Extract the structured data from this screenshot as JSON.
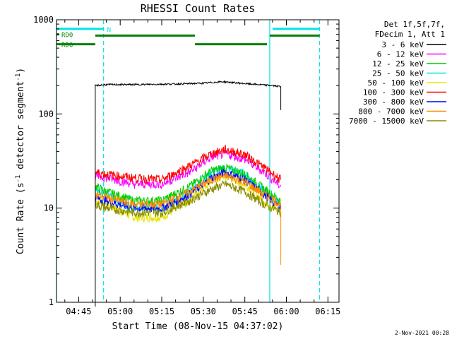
{
  "chart_data": {
    "type": "line",
    "title": "RHESSI Count Rates",
    "xlabel": "Start Time (08-Nov-15 04:37:02)",
    "ylabel_main": "Count Rate (s",
    "ylabel_sup1": "-1",
    "ylabel_mid": " detector segment",
    "ylabel_sup2": "-1",
    "ylabel_end": ")",
    "y_scale": "log",
    "ylim": [
      1,
      1000
    ],
    "xlim_minutes": [
      "04:37",
      "06:19"
    ],
    "y_ticks": [
      {
        "value": 1,
        "label": "1"
      },
      {
        "value": 10,
        "label": "10"
      },
      {
        "value": 100,
        "label": "100"
      },
      {
        "value": 1000,
        "label": "1000"
      }
    ],
    "x_ticks": [
      {
        "time": "04:45",
        "label": "04:45"
      },
      {
        "time": "05:00",
        "label": "05:00"
      },
      {
        "time": "05:15",
        "label": "05:15"
      },
      {
        "time": "05:30",
        "label": "05:30"
      },
      {
        "time": "05:45",
        "label": "05:45"
      },
      {
        "time": "06:00",
        "label": "06:00"
      },
      {
        "time": "06:15",
        "label": "06:15"
      }
    ],
    "legend": {
      "header": [
        "Det 1f,5f,7f,",
        "FDecim 1, Att 1"
      ],
      "placement": "right",
      "entries": [
        {
          "label": "3 - 6 keV",
          "color": "#000000"
        },
        {
          "label": "6 - 12 keV",
          "color": "#ff00ff"
        },
        {
          "label": "12 - 25 keV",
          "color": "#00cc00"
        },
        {
          "label": "25 - 50 keV",
          "color": "#00e5e5"
        },
        {
          "label": "50 - 100 keV",
          "color": "#e5e500"
        },
        {
          "label": "100 - 300 keV",
          "color": "#ff0000"
        },
        {
          "label": "300 - 800 keV",
          "color": "#0000ff"
        },
        {
          "label": "800 - 7000 keV",
          "color": "#ff8c00"
        },
        {
          "label": "7000 - 15000 keV",
          "color": "#8b8b00"
        }
      ]
    },
    "series": [
      {
        "name": "3 - 6 keV",
        "color": "#000000",
        "points": [
          [
            "04:51",
            0.9
          ],
          [
            "04:51",
            200
          ],
          [
            "04:55",
            205
          ],
          [
            "05:05",
            205
          ],
          [
            "05:20",
            208
          ],
          [
            "05:30",
            212
          ],
          [
            "05:37",
            220
          ],
          [
            "05:45",
            210
          ],
          [
            "05:55",
            200
          ],
          [
            "05:58",
            195
          ],
          [
            "05:58",
            110
          ]
        ]
      },
      {
        "name": "6 - 12 keV",
        "color": "#ff00ff",
        "points": [
          [
            "04:51",
            22
          ],
          [
            "04:55",
            21
          ],
          [
            "05:05",
            18
          ],
          [
            "05:15",
            18
          ],
          [
            "05:25",
            24
          ],
          [
            "05:33",
            35
          ],
          [
            "05:38",
            38
          ],
          [
            "05:45",
            33
          ],
          [
            "05:52",
            24
          ],
          [
            "05:58",
            17
          ]
        ]
      },
      {
        "name": "12 - 25 keV",
        "color": "#00cc00",
        "points": [
          [
            "04:51",
            17
          ],
          [
            "04:55",
            15
          ],
          [
            "05:05",
            12
          ],
          [
            "05:15",
            12
          ],
          [
            "05:25",
            17
          ],
          [
            "05:33",
            25
          ],
          [
            "05:38",
            27
          ],
          [
            "05:45",
            23
          ],
          [
            "05:52",
            16
          ],
          [
            "05:58",
            12
          ]
        ]
      },
      {
        "name": "25 - 50 keV",
        "color": "#00e5e5",
        "points": [
          [
            "04:51",
            16
          ],
          [
            "04:55",
            14
          ],
          [
            "05:05",
            10
          ],
          [
            "05:15",
            10
          ],
          [
            "05:25",
            15
          ],
          [
            "05:33",
            24
          ],
          [
            "05:38",
            27
          ],
          [
            "05:45",
            23
          ],
          [
            "05:52",
            15
          ],
          [
            "05:58",
            11
          ]
        ]
      },
      {
        "name": "50 - 100 keV",
        "color": "#e5e500",
        "points": [
          [
            "04:51",
            12
          ],
          [
            "04:55",
            11
          ],
          [
            "05:05",
            8
          ],
          [
            "05:15",
            8
          ],
          [
            "05:25",
            12
          ],
          [
            "05:33",
            20
          ],
          [
            "05:38",
            22
          ],
          [
            "05:45",
            18
          ],
          [
            "05:52",
            12
          ],
          [
            "05:58",
            9
          ]
        ]
      },
      {
        "name": "100 - 300 keV",
        "color": "#ff0000",
        "points": [
          [
            "04:51",
            24
          ],
          [
            "04:55",
            23
          ],
          [
            "05:05",
            21
          ],
          [
            "05:15",
            20
          ],
          [
            "05:25",
            28
          ],
          [
            "05:33",
            38
          ],
          [
            "05:38",
            42
          ],
          [
            "05:45",
            37
          ],
          [
            "05:52",
            27
          ],
          [
            "05:58",
            20
          ]
        ]
      },
      {
        "name": "300 - 800 keV",
        "color": "#0000ff",
        "points": [
          [
            "04:51",
            13
          ],
          [
            "04:55",
            12
          ],
          [
            "05:05",
            10
          ],
          [
            "05:15",
            10
          ],
          [
            "05:25",
            14
          ],
          [
            "05:33",
            21
          ],
          [
            "05:38",
            24
          ],
          [
            "05:45",
            20
          ],
          [
            "05:52",
            14
          ],
          [
            "05:58",
            10
          ]
        ]
      },
      {
        "name": "800 - 7000 keV",
        "color": "#ff8c00",
        "points": [
          [
            "04:51",
            14
          ],
          [
            "04:55",
            13
          ],
          [
            "05:05",
            11
          ],
          [
            "05:15",
            11
          ],
          [
            "05:25",
            15
          ],
          [
            "05:33",
            20
          ],
          [
            "05:38",
            22
          ],
          [
            "05:45",
            19
          ],
          [
            "05:52",
            14
          ],
          [
            "05:58",
            11
          ],
          [
            "05:58",
            2.5
          ]
        ]
      },
      {
        "name": "7000 - 15000 keV",
        "color": "#8b8b00",
        "points": [
          [
            "04:51",
            11
          ],
          [
            "04:55",
            10
          ],
          [
            "05:05",
            9
          ],
          [
            "05:15",
            9
          ],
          [
            "05:25",
            12
          ],
          [
            "05:33",
            16
          ],
          [
            "05:38",
            18
          ],
          [
            "05:45",
            15
          ],
          [
            "05:52",
            11
          ],
          [
            "05:58",
            9
          ]
        ]
      }
    ],
    "flags": [
      {
        "label": "RD0",
        "color": "#008000",
        "value_y": 700,
        "segments": [
          [
            "04:37",
            "04:38"
          ]
        ]
      },
      {
        "label": "RD6",
        "color": "#008000",
        "value_y": 550,
        "segments": [
          [
            "04:37",
            "04:51"
          ]
        ]
      },
      {
        "label": "",
        "color": "#008000",
        "value_y": 680,
        "segments": [
          [
            "04:51",
            "05:27"
          ],
          [
            "05:54",
            "06:12"
          ]
        ]
      },
      {
        "label": "",
        "color": "#008000",
        "value_y": 550,
        "segments": [
          [
            "05:27",
            "05:53"
          ]
        ]
      },
      {
        "label": "N",
        "color": "#00e5e5",
        "value_y": 800,
        "segments": [
          [
            "04:37",
            "04:54"
          ],
          [
            "05:55",
            "06:12"
          ]
        ]
      }
    ],
    "vertical_lines": [
      {
        "time": "04:37",
        "color": "#00e5e5",
        "style": "solid"
      },
      {
        "time": "04:54",
        "color": "#00e5e5",
        "style": "dashed"
      },
      {
        "time": "05:54",
        "color": "#00e5e5",
        "style": "solid"
      },
      {
        "time": "06:12",
        "color": "#00e5e5",
        "style": "dashed"
      }
    ]
  },
  "footer": {
    "timestamp": "2-Nov-2021 00:28"
  }
}
